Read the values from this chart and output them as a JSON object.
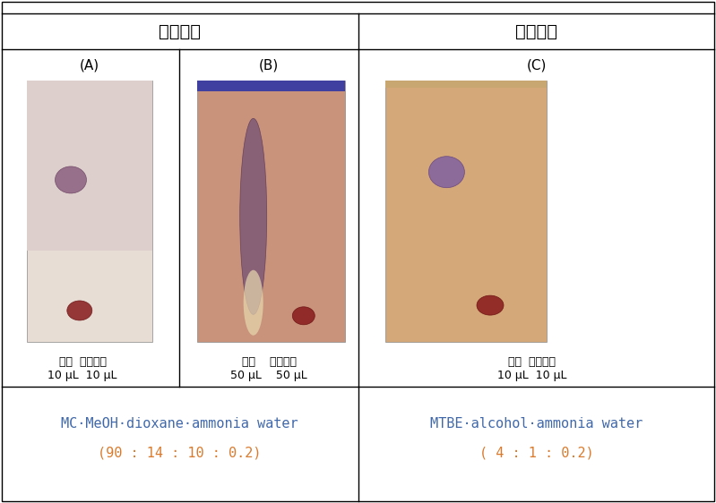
{
  "title_left": "기존조건",
  "title_right": "변경조건",
  "label_A": "(A)",
  "label_B": "(B)",
  "label_C": "(C)",
  "text_A_line1": "검액  유연물질",
  "text_A_line2": "10 μL  10 μL",
  "text_B_line1": "검액    유연물질",
  "text_B_line2": "50 μL    50 μL",
  "text_C_line1": "검액  유연물질",
  "text_C_line2": "10 μL  10 μL",
  "bottom_left_line1": "MC·MeOH·dioxane·ammonia water",
  "bottom_left_line2": "(90 : 14 : 10 : 0.2)",
  "bottom_right_line1": "MTBE·alcohol·ammonia water",
  "bottom_right_line2": "( 4 : 1 : 0.2)",
  "text_color_blue": "#4169aa",
  "text_color_orange": "#d97b2e",
  "bg_color": "#ffffff",
  "plate_A_bg": "#e8ddd5",
  "plate_B_bg": "#c8937a",
  "plate_C_bg": "#d4a878",
  "spot_purple": "#8b6b8b",
  "spot_red": "#8b2a2a",
  "spot_red2": "#7a2020"
}
